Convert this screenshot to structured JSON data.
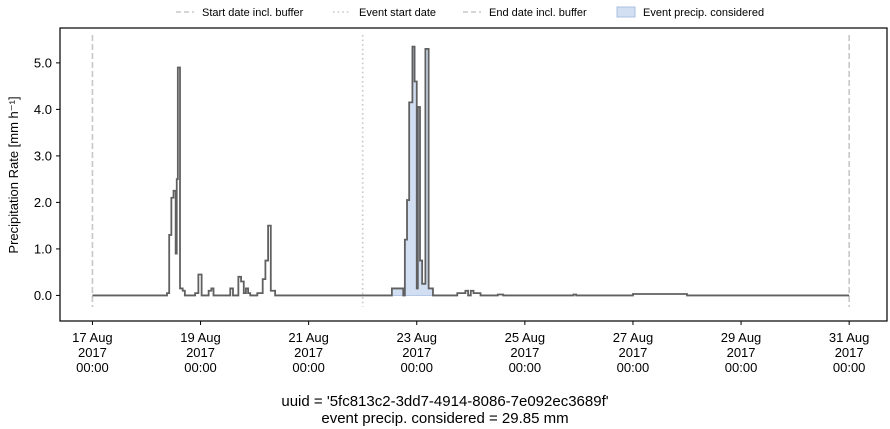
{
  "chart_data": {
    "type": "line",
    "ylabel": "Precipitation Rate [mm h⁻¹]",
    "xlabel": "",
    "ylim": [
      -0.55,
      5.75
    ],
    "yticks": [
      0.0,
      1.0,
      2.0,
      3.0,
      4.0,
      5.0
    ],
    "ytick_labels": [
      "0.0",
      "1.0",
      "2.0",
      "3.0",
      "4.0",
      "5.0"
    ],
    "xlim_days": [
      -0.6,
      14.7
    ],
    "xticks": [
      {
        "day": 0,
        "label": [
          "17 Aug",
          "2017",
          "00:00"
        ]
      },
      {
        "day": 2,
        "label": [
          "19 Aug",
          "2017",
          "00:00"
        ]
      },
      {
        "day": 4,
        "label": [
          "21 Aug",
          "2017",
          "00:00"
        ]
      },
      {
        "day": 6,
        "label": [
          "23 Aug",
          "2017",
          "00:00"
        ]
      },
      {
        "day": 8,
        "label": [
          "25 Aug",
          "2017",
          "00:00"
        ]
      },
      {
        "day": 10,
        "label": [
          "27 Aug",
          "2017",
          "00:00"
        ]
      },
      {
        "day": 12,
        "label": [
          "29 Aug",
          "2017",
          "00:00"
        ]
      },
      {
        "day": 14,
        "label": [
          "31 Aug",
          "2017",
          "00:00"
        ]
      }
    ],
    "legend": {
      "placement": "top",
      "entries": [
        {
          "label": "Start date incl. buffer",
          "style": "dashed"
        },
        {
          "label": "Event start date",
          "style": "dotted"
        },
        {
          "label": "End date incl. buffer",
          "style": "dashed"
        },
        {
          "label": "Event precip. considered",
          "style": "fill"
        }
      ]
    },
    "vlines": [
      {
        "day": 0.0,
        "style": "dashed",
        "label": "Start date incl. buffer"
      },
      {
        "day": 5.0,
        "style": "dotted",
        "label": "Event start date"
      },
      {
        "day": 14.0,
        "style": "dashed",
        "label": "End date incl. buffer"
      }
    ],
    "series": [
      {
        "name": "precipitation",
        "kind": "step",
        "points": [
          [
            0.0,
            0.0
          ],
          [
            1.35,
            0.0
          ],
          [
            1.38,
            0.05
          ],
          [
            1.42,
            1.3
          ],
          [
            1.46,
            2.1
          ],
          [
            1.5,
            2.25
          ],
          [
            1.54,
            0.9
          ],
          [
            1.56,
            2.5
          ],
          [
            1.58,
            4.9
          ],
          [
            1.62,
            0.15
          ],
          [
            1.67,
            0.1
          ],
          [
            1.71,
            0.0
          ],
          [
            1.9,
            0.05
          ],
          [
            1.96,
            0.45
          ],
          [
            2.02,
            0.0
          ],
          [
            2.15,
            0.1
          ],
          [
            2.2,
            0.15
          ],
          [
            2.24,
            0.0
          ],
          [
            2.55,
            0.15
          ],
          [
            2.6,
            0.0
          ],
          [
            2.7,
            0.4
          ],
          [
            2.75,
            0.3
          ],
          [
            2.8,
            0.05
          ],
          [
            2.84,
            0.15
          ],
          [
            2.88,
            0.05
          ],
          [
            2.92,
            0.0
          ],
          [
            3.05,
            0.05
          ],
          [
            3.15,
            0.35
          ],
          [
            3.2,
            0.75
          ],
          [
            3.25,
            1.5
          ],
          [
            3.3,
            0.1
          ],
          [
            3.38,
            0.0
          ],
          [
            5.5,
            0.0
          ],
          [
            5.54,
            0.15
          ],
          [
            5.75,
            0.0
          ],
          [
            5.78,
            1.2
          ],
          [
            5.82,
            2.05
          ],
          [
            5.86,
            4.15
          ],
          [
            5.92,
            5.35
          ],
          [
            5.96,
            4.6
          ],
          [
            6.0,
            0.15
          ],
          [
            6.02,
            4.05
          ],
          [
            6.06,
            0.75
          ],
          [
            6.1,
            0.25
          ],
          [
            6.16,
            5.3
          ],
          [
            6.22,
            0.15
          ],
          [
            6.3,
            0.0
          ],
          [
            6.75,
            0.05
          ],
          [
            6.9,
            0.1
          ],
          [
            6.95,
            0.0
          ],
          [
            7.0,
            0.1
          ],
          [
            7.05,
            0.05
          ],
          [
            7.12,
            0.05
          ],
          [
            7.18,
            0.0
          ],
          [
            7.5,
            0.02
          ],
          [
            7.6,
            0.0
          ],
          [
            8.9,
            0.02
          ],
          [
            8.95,
            0.0
          ],
          [
            10.0,
            0.03
          ],
          [
            11.0,
            0.0
          ],
          [
            14.0,
            0.0
          ]
        ]
      }
    ],
    "fill_region_days": [
      5.5,
      6.3
    ],
    "caption": [
      "uuid = '5fc813c2-3dd7-4914-8086-7e092ec3689f'",
      "event precip. considered = 29.85 mm"
    ]
  },
  "colors": {
    "line": "#606060",
    "fill": "#d2dff2",
    "fill_edge": "#a9c0e2",
    "vline": "#c8c8c8",
    "axis": "#000000"
  }
}
